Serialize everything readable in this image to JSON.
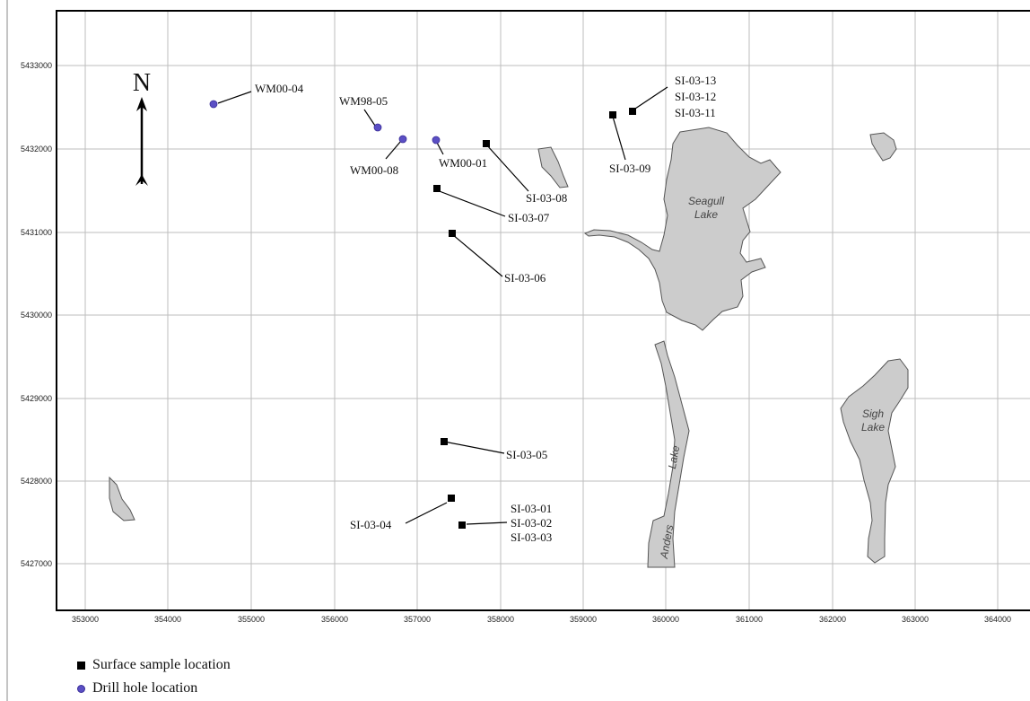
{
  "map": {
    "north_label": "N",
    "x_ticks": [
      "353000",
      "354000",
      "355000",
      "356000",
      "357000",
      "358000",
      "359000",
      "360000",
      "361000",
      "362000",
      "363000",
      "364000"
    ],
    "y_ticks": [
      "5433000",
      "5432000",
      "5431000",
      "5430000",
      "5429000",
      "5428000",
      "5427000"
    ],
    "lakes": [
      {
        "id": "seagull",
        "name": [
          "Seagull",
          "Lake"
        ]
      },
      {
        "id": "sigh",
        "name": [
          "Sigh",
          "Lake"
        ]
      },
      {
        "id": "anders",
        "name": [
          "Anders",
          "Lake"
        ]
      }
    ],
    "surface_samples": [
      {
        "labels": [
          "SI-03-13",
          "SI-03-12",
          "SI-03-11"
        ]
      },
      {
        "labels": [
          "SI-03-09"
        ]
      },
      {
        "labels": [
          "SI-03-08"
        ]
      },
      {
        "labels": [
          "SI-03-07"
        ]
      },
      {
        "labels": [
          "SI-03-06"
        ]
      },
      {
        "labels": [
          "SI-03-05"
        ]
      },
      {
        "labels": [
          "SI-03-04"
        ]
      },
      {
        "labels": [
          "SI-03-01",
          "SI-03-02",
          "SI-03-03"
        ]
      }
    ],
    "drill_holes": [
      {
        "label": "WM00-04"
      },
      {
        "label": "WM98-05"
      },
      {
        "label": "WM00-08"
      },
      {
        "label": "WM00-01"
      }
    ],
    "colors": {
      "lake_fill": "#cccccc",
      "lake_stroke": "#555555",
      "grid": "#bdbdbd",
      "drill_hole": "#5b4fc4",
      "sample": "#000000"
    }
  },
  "legend": {
    "surface_sample": "Surface sample location",
    "drill_hole": "Drill hole location"
  }
}
